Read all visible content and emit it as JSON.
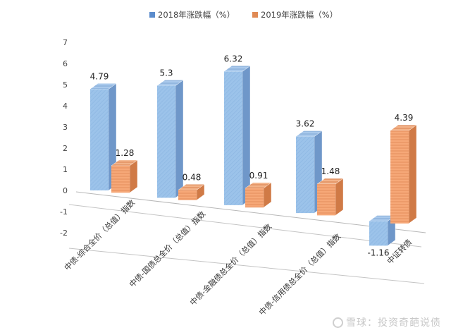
{
  "chart_data": {
    "type": "bar",
    "style": "3d-clustered-column",
    "categories": [
      "中债-综合全价（总值）指数",
      "中债-国债总全价（总值）指数",
      "中债-金融债总全价（总值）指数",
      "中债-信用债总全价（总值）指数",
      "中证转债"
    ],
    "series": [
      {
        "name": "2018年涨跌幅（%）",
        "values": [
          4.79,
          5.3,
          6.32,
          3.62,
          -1.16
        ],
        "color": "#9cc3ea",
        "labels": [
          "4.79",
          "5.3",
          "6.32",
          "3.62",
          "-1.16"
        ]
      },
      {
        "name": "2019年涨跌幅（%）",
        "values": [
          1.28,
          0.48,
          0.91,
          1.48,
          4.39
        ],
        "color": "#f6a878",
        "labels": [
          "1.28",
          "0.48",
          "0.91",
          "1.48",
          "4.39"
        ]
      }
    ],
    "yticks": [
      "-2",
      "-1",
      "0",
      "1",
      "2",
      "3",
      "4",
      "5",
      "6",
      "7"
    ],
    "ylim": [
      -2,
      7
    ],
    "legend_position": "top",
    "grid": false
  },
  "watermark": {
    "text": "雪球：投资奇葩说债"
  }
}
